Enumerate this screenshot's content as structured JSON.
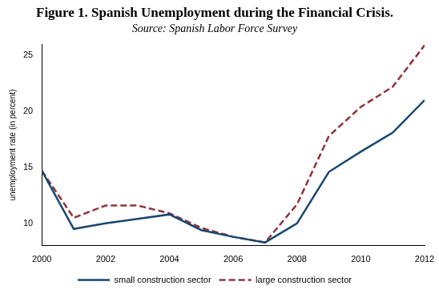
{
  "chart_data": {
    "type": "line",
    "title": "Figure 1. Spanish Unemployment during the Financial Crisis.",
    "subtitle": "Source: Spanish Labor Force Survey",
    "y_label": "unemployment rate (in percent)",
    "x": [
      2000,
      2001,
      2002,
      2003,
      2004,
      2005,
      2006,
      2007,
      2008,
      2009,
      2010,
      2011,
      2012
    ],
    "series": [
      {
        "name": "small construction sector",
        "color": "#1a476f",
        "line_style": "solid",
        "values": [
          14.7,
          9.5,
          10.0,
          10.4,
          10.8,
          9.4,
          8.8,
          8.3,
          10.0,
          14.6,
          16.4,
          18.1,
          21.0
        ]
      },
      {
        "name": "large construction sector",
        "color": "#90353b",
        "line_style": "dashed",
        "values": [
          14.7,
          10.5,
          11.6,
          11.6,
          10.9,
          9.6,
          8.8,
          8.3,
          11.7,
          17.8,
          20.4,
          22.2,
          25.9
        ]
      }
    ],
    "xlim": [
      2000,
      2012
    ],
    "xticks": [
      2000,
      2002,
      2004,
      2006,
      2008,
      2010,
      2012
    ],
    "ylim": [
      8,
      26
    ],
    "yticks": [
      10,
      15,
      20,
      25
    ],
    "grid": false,
    "legend": "bottom",
    "marker": "none"
  }
}
